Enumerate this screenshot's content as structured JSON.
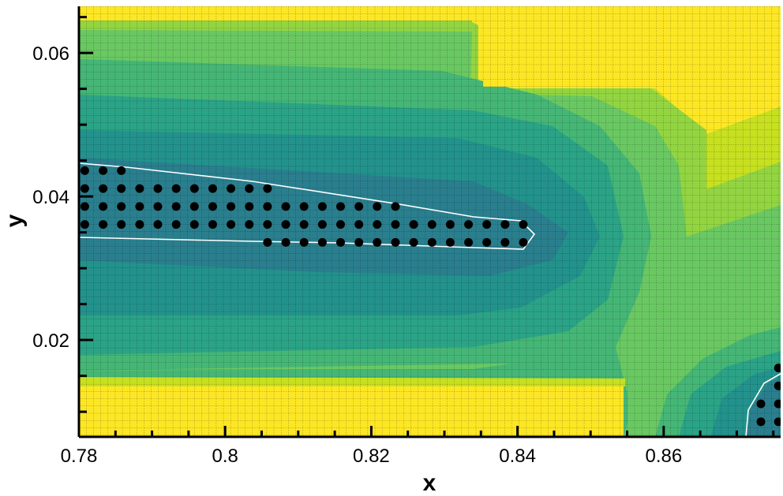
{
  "chart_data": {
    "type": "heatmap",
    "title": "",
    "xlabel": "x",
    "ylabel": "y",
    "xlim": [
      0.78,
      0.876
    ],
    "ylim": [
      0.0065,
      0.0665
    ],
    "x_ticks": [
      0.78,
      0.8,
      0.82,
      0.84,
      0.86
    ],
    "x_tick_labels": [
      "0.78",
      "0.8",
      "0.82",
      "0.84",
      "0.86"
    ],
    "y_ticks": [
      0.02,
      0.04,
      0.06
    ],
    "y_tick_labels": [
      "0.02",
      "0.04",
      "0.06"
    ],
    "grid": true,
    "colormap": [
      "#2a7f8e",
      "#23928c",
      "#2ba386",
      "#45b676",
      "#6ac862",
      "#93d541",
      "#c7e020",
      "#fde725"
    ],
    "field_description": "contour levels of a scalar field; low values along the horizontal band near y=0.038 and around the lower-right corner, high values at top and bottom edges",
    "contour_line_color": "#ffffff",
    "marker_color": "#000000",
    "markers": {
      "rows": [
        {
          "y": 0.0436,
          "x": [
            0.7808,
            0.7833,
            0.7858
          ]
        },
        {
          "y": 0.0411,
          "x": [
            0.7808,
            0.7833,
            0.7858,
            0.7883,
            0.7908,
            0.7933,
            0.7958,
            0.7983,
            0.8008,
            0.8033,
            0.8058
          ]
        },
        {
          "y": 0.0386,
          "x": [
            0.7808,
            0.7833,
            0.7858,
            0.7883,
            0.7908,
            0.7933,
            0.7958,
            0.7983,
            0.8008,
            0.8033,
            0.8058,
            0.8083,
            0.8108,
            0.8133,
            0.8158,
            0.8183,
            0.8208,
            0.8233
          ]
        },
        {
          "y": 0.0361,
          "x": [
            0.7808,
            0.7833,
            0.7858,
            0.7883,
            0.7908,
            0.7933,
            0.7958,
            0.7983,
            0.8008,
            0.8033,
            0.8058,
            0.8083,
            0.8108,
            0.8133,
            0.8158,
            0.8183,
            0.8208,
            0.8233,
            0.8258,
            0.8283,
            0.8308,
            0.8333,
            0.8358,
            0.8383,
            0.8408
          ]
        },
        {
          "y": 0.0336,
          "x": [
            0.8058,
            0.8083,
            0.8108,
            0.8133,
            0.8158,
            0.8183,
            0.8208,
            0.8233,
            0.8258,
            0.8283,
            0.8308,
            0.8333,
            0.8358,
            0.8383,
            0.8408
          ]
        },
        {
          "y": 0.0161,
          "x": [
            0.8757
          ]
        },
        {
          "y": 0.0136,
          "x": [
            0.8757
          ]
        },
        {
          "y": 0.0111,
          "x": [
            0.8733,
            0.8757
          ]
        },
        {
          "y": 0.0086,
          "x": [
            0.8733,
            0.8757
          ]
        }
      ]
    }
  }
}
